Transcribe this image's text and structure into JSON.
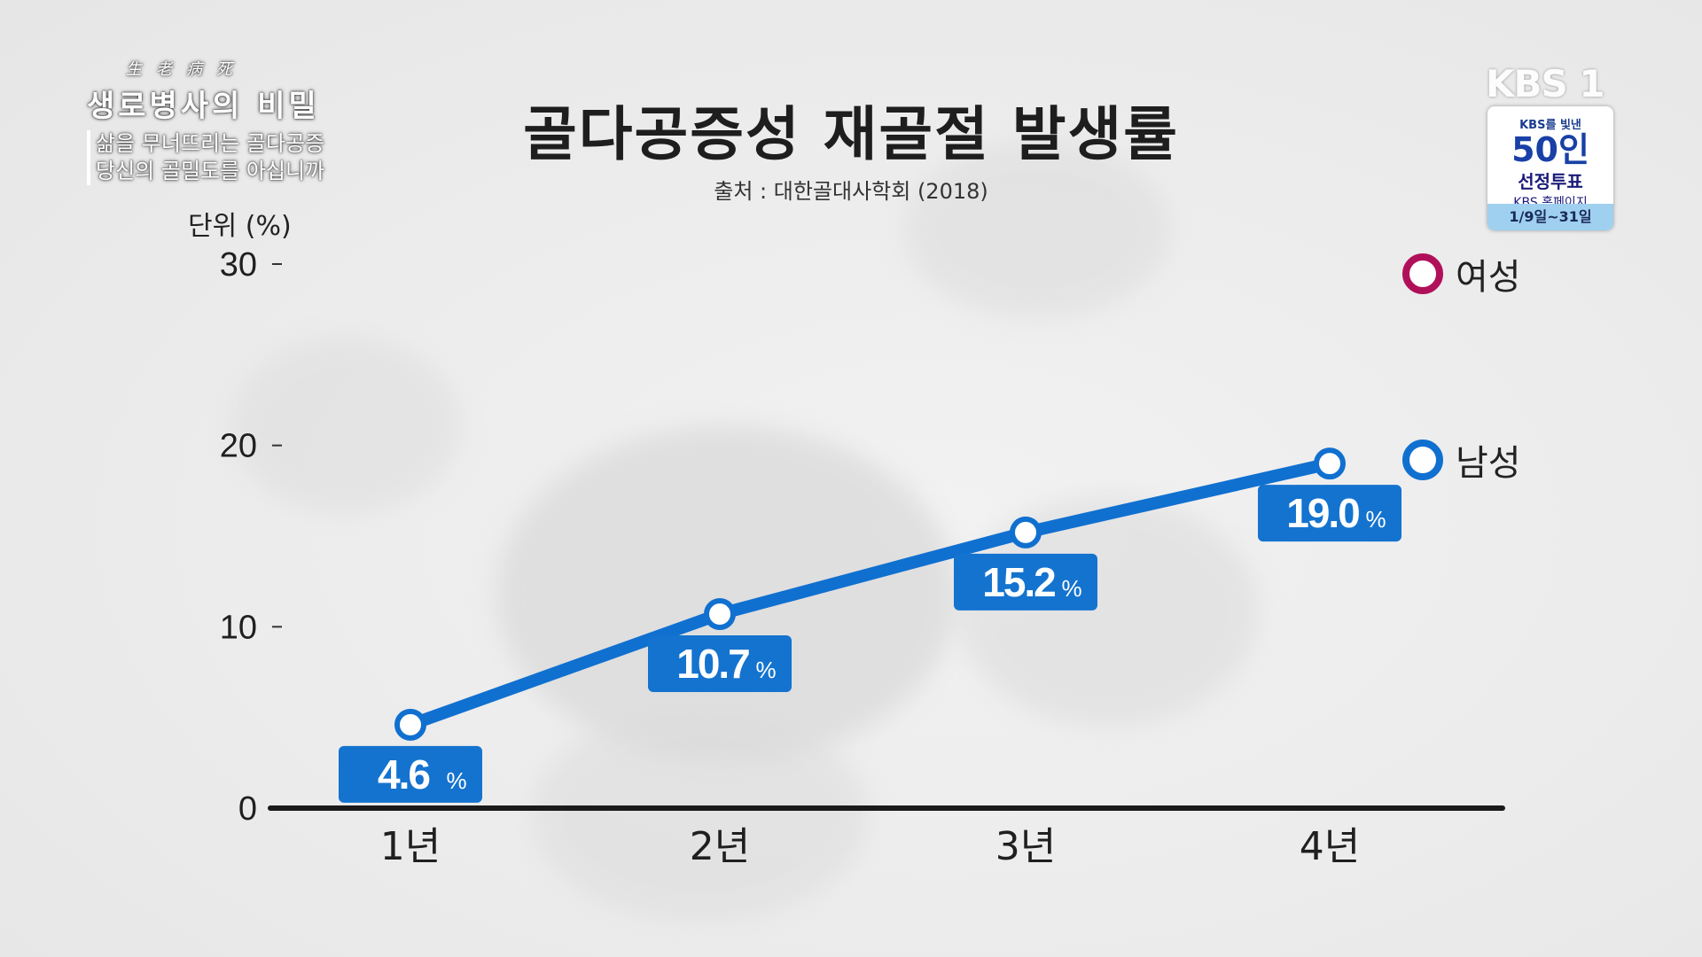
{
  "program": {
    "hanja": "生老病死",
    "name": "생로병사의 비밀",
    "subtitle_line1": "삶을 무너뜨리는 골다공증",
    "subtitle_line2": "당신의 골밀도를 아십니까"
  },
  "channel_logo": "KBS 1",
  "promo": {
    "line1": "KBS를 빛낸",
    "line2": "50인",
    "line3": "선정투표",
    "line4": "KBS 홈페이지",
    "line5": "1/9일~31일"
  },
  "colors": {
    "male": "#1070d0",
    "female": "#b0105a",
    "axis": "#1a1a1a",
    "label_bg": "#1473cf"
  },
  "chart_data": {
    "type": "line",
    "title": "골다공증성 재골절 발생률",
    "source": "출처 : 대한골대사학회 (2018)",
    "unit_label": "단위 (%)",
    "categories": [
      "1년",
      "2년",
      "3년",
      "4년"
    ],
    "ylim": [
      0,
      30
    ],
    "yticks": [
      "0",
      "10",
      "20",
      "30"
    ],
    "series": [
      {
        "name": "남성",
        "values": [
          4.6,
          10.7,
          15.2,
          19.0
        ],
        "labels": [
          "4.6",
          "10.7",
          "15.2",
          "19.0"
        ],
        "color_key": "male"
      }
    ],
    "legend": [
      {
        "name": "여성",
        "color_key": "female"
      },
      {
        "name": "남성",
        "color_key": "male"
      }
    ],
    "value_suffix": "%",
    "legend_position": "right",
    "grid": false
  }
}
